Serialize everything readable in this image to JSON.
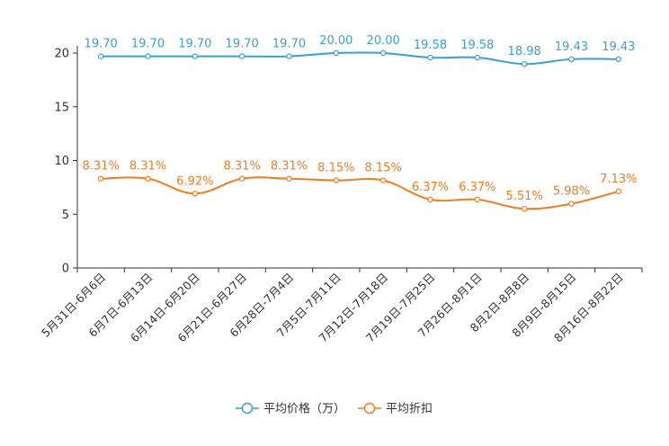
{
  "chart_data": {
    "type": "line",
    "title": "",
    "xlabel": "",
    "ylabel": "",
    "ylim": [
      0,
      20
    ],
    "yticks": [
      0,
      5,
      10,
      15,
      20
    ],
    "categories": [
      "5月31日-6月6日",
      "6月7日-6月13日",
      "6月14日-6月20日",
      "6月21日-6月27日",
      "6月28日-7月4日",
      "7月5日-7月11日",
      "7月12日-7月18日",
      "7月19日-7月25日",
      "7月26日-8月1日",
      "8月2日-8月8日",
      "8月9日-8月15日",
      "8月16日-8月22日"
    ],
    "series": [
      {
        "name": "平均价格（万）",
        "color": "#3a9fd1",
        "values": [
          19.7,
          19.7,
          19.7,
          19.7,
          19.7,
          20.0,
          20.0,
          19.58,
          19.58,
          18.98,
          19.43,
          19.43
        ],
        "labels": [
          "19.70",
          "19.70",
          "19.70",
          "19.70",
          "19.70",
          "20.00",
          "20.00",
          "19.58",
          "19.58",
          "18.98",
          "19.43",
          "19.43"
        ]
      },
      {
        "name": "平均折扣",
        "color": "#f07c21",
        "values": [
          8.31,
          8.31,
          6.92,
          8.31,
          8.31,
          8.15,
          8.15,
          6.37,
          6.37,
          5.51,
          5.98,
          7.13
        ],
        "labels": [
          "8.31%",
          "8.31%",
          "6.92%",
          "8.31%",
          "8.31%",
          "8.15%",
          "8.15%",
          "6.37%",
          "6.37%",
          "5.51%",
          "5.98%",
          "7.13%"
        ]
      }
    ],
    "grid": false,
    "legend_position": "bottom-center"
  }
}
